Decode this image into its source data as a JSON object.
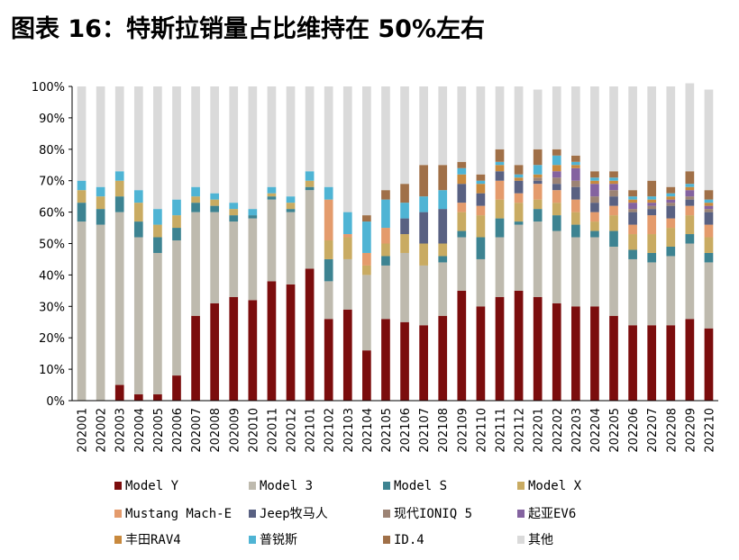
{
  "title": "图表 16：特斯拉销量占比维持在 50%左右",
  "chart_data": {
    "type": "bar",
    "stacked": true,
    "ylim": [
      0,
      100
    ],
    "yticks": [
      "0%",
      "10%",
      "20%",
      "30%",
      "40%",
      "50%",
      "60%",
      "70%",
      "80%",
      "90%",
      "100%"
    ],
    "categories": [
      "202001",
      "202002",
      "202003",
      "202004",
      "202005",
      "202006",
      "202007",
      "202008",
      "202009",
      "202010",
      "202011",
      "202012",
      "202101",
      "202102",
      "202103",
      "202104",
      "202105",
      "202106",
      "202107",
      "202108",
      "202109",
      "202110",
      "202111",
      "202112",
      "202201",
      "202202",
      "202203",
      "202204",
      "202205",
      "202206",
      "202207",
      "202208",
      "202209",
      "202210"
    ],
    "series": [
      {
        "name": "Model Y",
        "color": "#7B0D0D",
        "values": [
          0,
          0,
          5,
          2,
          2,
          8,
          27,
          31,
          33,
          32,
          38,
          37,
          42,
          26,
          29,
          16,
          26,
          25,
          24,
          27,
          35,
          30,
          33,
          35,
          33,
          31,
          30,
          30,
          27,
          24,
          24,
          24,
          26,
          23
        ]
      },
      {
        "name": "Model 3",
        "color": "#BEBAAE",
        "values": [
          57,
          56,
          55,
          50,
          45,
          43,
          33,
          29,
          24,
          26,
          26,
          23,
          25,
          12,
          16,
          24,
          17,
          22,
          19,
          17,
          17,
          15,
          19,
          21,
          24,
          23,
          22,
          22,
          22,
          21,
          20,
          22,
          24,
          21
        ]
      },
      {
        "name": "Model S",
        "color": "#3D8391",
        "values": [
          6,
          5,
          5,
          5,
          5,
          4,
          3,
          2,
          2,
          1,
          1,
          1,
          1,
          7,
          0,
          0,
          3,
          0,
          0,
          2,
          2,
          7,
          6,
          1,
          4,
          5,
          4,
          2,
          5,
          3,
          3,
          3,
          3,
          3
        ]
      },
      {
        "name": "Model X",
        "color": "#C9AB62",
        "values": [
          4,
          4,
          5,
          6,
          4,
          4,
          2,
          2,
          2,
          0,
          1,
          2,
          2,
          6,
          7,
          3,
          4,
          6,
          7,
          4,
          6,
          7,
          6,
          6,
          3,
          4,
          4,
          3,
          5,
          5,
          6,
          6,
          6,
          5
        ]
      },
      {
        "name": "Mustang Mach-E",
        "color": "#E49B6C",
        "values": [
          0,
          0,
          0,
          0,
          0,
          0,
          0,
          0,
          0,
          0,
          0,
          0,
          0,
          13,
          1,
          4,
          5,
          0,
          0,
          0,
          3,
          3,
          6,
          3,
          5,
          4,
          4,
          3,
          3,
          3,
          6,
          3,
          3,
          4
        ]
      },
      {
        "name": "Jeep牧马人",
        "color": "#596182",
        "values": [
          0,
          0,
          0,
          0,
          0,
          0,
          0,
          0,
          0,
          0,
          0,
          0,
          0,
          0,
          0,
          0,
          0,
          5,
          10,
          11,
          6,
          4,
          3,
          4,
          1,
          2,
          4,
          3,
          3,
          4,
          2,
          4,
          2,
          4
        ]
      },
      {
        "name": "现代IONIQ 5",
        "color": "#9C8374",
        "values": [
          0,
          0,
          0,
          0,
          0,
          0,
          0,
          0,
          0,
          0,
          0,
          0,
          0,
          0,
          0,
          0,
          0,
          0,
          0,
          0,
          0,
          0,
          0,
          0,
          1,
          2,
          2,
          2,
          2,
          1,
          1,
          1,
          1,
          1
        ]
      },
      {
        "name": "起亚EV6",
        "color": "#8463A0",
        "values": [
          0,
          0,
          0,
          0,
          0,
          0,
          0,
          0,
          0,
          0,
          0,
          0,
          0,
          0,
          0,
          0,
          0,
          0,
          0,
          0,
          0,
          0,
          0,
          0,
          0,
          2,
          4,
          4,
          2,
          2,
          1,
          1,
          2,
          1
        ]
      },
      {
        "name": "丰田RAV4",
        "color": "#C8893D",
        "values": [
          0,
          0,
          0,
          0,
          0,
          0,
          0,
          0,
          0,
          0,
          0,
          0,
          0,
          0,
          0,
          0,
          0,
          0,
          0,
          0,
          3,
          3,
          2,
          1,
          1,
          2,
          1,
          1,
          1,
          1,
          1,
          1,
          1,
          1
        ]
      },
      {
        "name": "普锐斯",
        "color": "#4FB4D4",
        "values": [
          3,
          3,
          3,
          4,
          5,
          5,
          3,
          2,
          2,
          2,
          2,
          2,
          3,
          4,
          7,
          10,
          9,
          5,
          5,
          6,
          2,
          1,
          1,
          1,
          3,
          3,
          1,
          1,
          1,
          1,
          1,
          1,
          1,
          1
        ]
      },
      {
        "name": "ID.4",
        "color": "#A07048",
        "values": [
          0,
          0,
          0,
          0,
          0,
          0,
          0,
          0,
          0,
          0,
          0,
          0,
          0,
          0,
          0,
          2,
          3,
          6,
          10,
          8,
          2,
          2,
          4,
          3,
          5,
          2,
          2,
          2,
          2,
          2,
          5,
          2,
          4,
          3
        ]
      },
      {
        "name": "其他",
        "color": "#DADADA",
        "values": [
          30,
          32,
          27,
          33,
          39,
          36,
          32,
          34,
          37,
          39,
          32,
          35,
          27,
          32,
          40,
          41,
          33,
          31,
          25,
          25,
          24,
          28,
          20,
          25,
          19,
          20,
          22,
          27,
          27,
          33,
          30,
          32,
          28,
          32
        ]
      }
    ]
  }
}
